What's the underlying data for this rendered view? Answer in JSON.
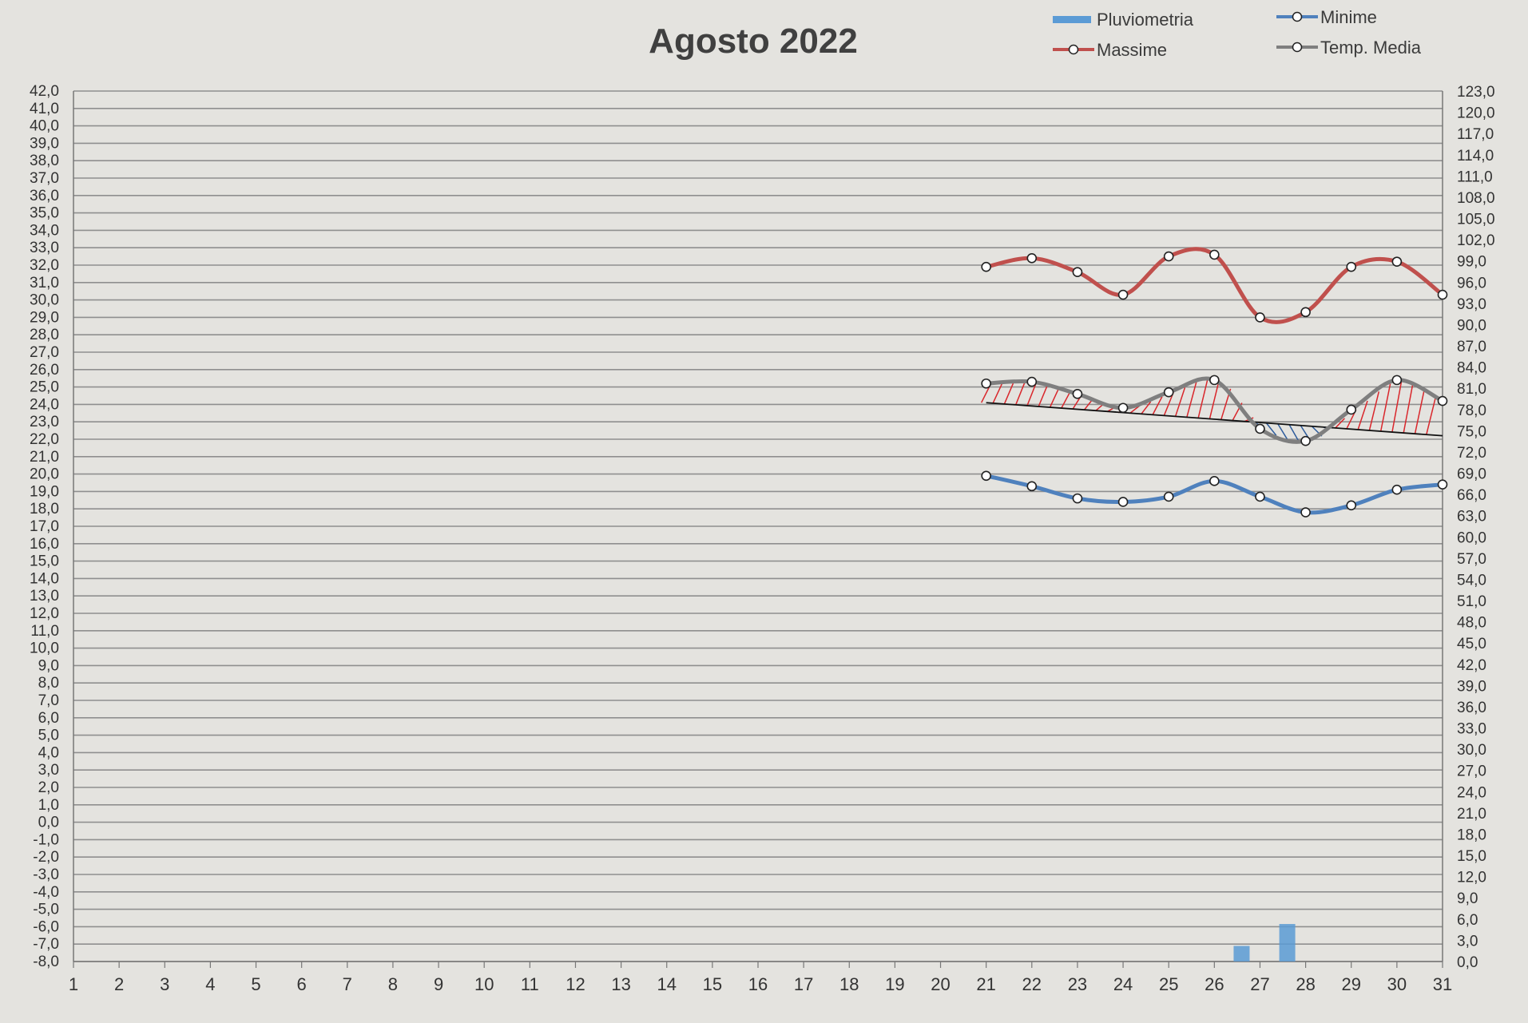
{
  "chart_data": {
    "type": "line",
    "title": "Agosto 2022",
    "categories": [
      "1",
      "2",
      "3",
      "4",
      "5",
      "6",
      "7",
      "8",
      "9",
      "10",
      "11",
      "12",
      "13",
      "14",
      "15",
      "16",
      "17",
      "18",
      "19",
      "20",
      "21",
      "22",
      "23",
      "24",
      "25",
      "26",
      "27",
      "28",
      "29",
      "30",
      "31"
    ],
    "y_left": {
      "min": -8,
      "max": 42,
      "step": 1,
      "tick_labels": [
        "-8,0",
        "-7,0",
        "-6,0",
        "-5,0",
        "-4,0",
        "-3,0",
        "-2,0",
        "-1,0",
        "0,0",
        "1,0",
        "2,0",
        "3,0",
        "4,0",
        "5,0",
        "6,0",
        "7,0",
        "8,0",
        "9,0",
        "10,0",
        "11,0",
        "12,0",
        "13,0",
        "14,0",
        "15,0",
        "16,0",
        "17,0",
        "18,0",
        "19,0",
        "20,0",
        "21,0",
        "22,0",
        "23,0",
        "24,0",
        "25,0",
        "26,0",
        "27,0",
        "28,0",
        "29,0",
        "30,0",
        "31,0",
        "32,0",
        "33,0",
        "34,0",
        "35,0",
        "36,0",
        "37,0",
        "38,0",
        "39,0",
        "40,0",
        "41,0",
        "42,0"
      ]
    },
    "y_right": {
      "min": 0,
      "max": 123,
      "step": 3,
      "tick_labels": [
        "0,0",
        "3,0",
        "6,0",
        "9,0",
        "12,0",
        "15,0",
        "18,0",
        "21,0",
        "24,0",
        "27,0",
        "30,0",
        "33,0",
        "36,0",
        "39,0",
        "42,0",
        "45,0",
        "48,0",
        "51,0",
        "54,0",
        "57,0",
        "60,0",
        "63,0",
        "66,0",
        "69,0",
        "72,0",
        "75,0",
        "78,0",
        "81,0",
        "84,0",
        "87,0",
        "90,0",
        "93,0",
        "96,0",
        "99,0",
        "102,0",
        "105,0",
        "108,0",
        "111,0",
        "114,0",
        "117,0",
        "120,0",
        "123,0"
      ]
    },
    "grid": true,
    "legend_position": "top-right",
    "legend": [
      {
        "label": "Pluviometria",
        "kind": "bar"
      },
      {
        "label": "Minime",
        "kind": "line"
      },
      {
        "label": "Massime",
        "kind": "line"
      },
      {
        "label": "Temp. Media",
        "kind": "line"
      }
    ],
    "series": [
      {
        "name": "Massime",
        "axis": "left",
        "color": "#c0504d",
        "x": [
          21,
          22,
          23,
          24,
          25,
          26,
          27,
          28,
          29,
          30,
          31
        ],
        "values": [
          31.9,
          32.4,
          31.6,
          30.3,
          32.5,
          32.6,
          29.0,
          29.3,
          31.9,
          32.2,
          30.3
        ]
      },
      {
        "name": "Temp. Media",
        "axis": "left",
        "color": "#7f7f7f",
        "x": [
          21,
          22,
          23,
          24,
          25,
          26,
          27,
          28,
          29,
          30,
          31
        ],
        "values": [
          25.2,
          25.3,
          24.6,
          23.8,
          24.7,
          25.4,
          22.6,
          21.9,
          23.7,
          25.4,
          24.2
        ]
      },
      {
        "name": "Minime",
        "axis": "left",
        "color": "#4f81bd",
        "x": [
          21,
          22,
          23,
          24,
          25,
          26,
          27,
          28,
          29,
          30,
          31
        ],
        "values": [
          19.9,
          19.3,
          18.6,
          18.4,
          18.7,
          19.6,
          18.7,
          17.8,
          18.2,
          19.1,
          19.4
        ]
      },
      {
        "name": "Pluviometria",
        "axis": "right",
        "type": "bar",
        "color": "#5b9bd5",
        "x": [
          27,
          28
        ],
        "values": [
          2.2,
          5.3
        ]
      }
    ],
    "trendline": {
      "of": "Temp. Media",
      "x": [
        21,
        31
      ],
      "values": [
        24.1,
        22.2
      ],
      "color": "#111111"
    },
    "fill_colors": {
      "above": "#d9262b",
      "below": "#2e5c9c"
    }
  }
}
